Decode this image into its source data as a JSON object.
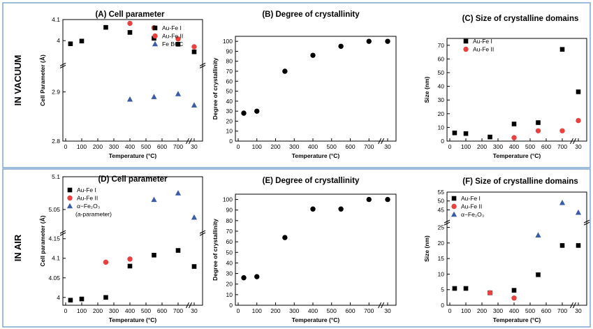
{
  "row_labels": [
    "IN VACUUM",
    "IN AIR"
  ],
  "colors": {
    "frame": "#7ea6d3",
    "au_fe_i": "#000000",
    "au_fe_ii": "#e8413f",
    "third": "#3a5ba8"
  },
  "chart_data": [
    {
      "type": "scatter",
      "title": "(A) Cell parameter",
      "xlabel": "Temperature (°C)",
      "ylabel": "Cell Parameter (Å)",
      "x_ticks": [
        "0",
        "100",
        "200",
        "300",
        "400",
        "500",
        "600",
        "700",
        "30"
      ],
      "y_ticks_upper": [
        "4",
        "4.1"
      ],
      "y_ticks_lower": [
        "2.8",
        "2.9"
      ],
      "ylim_upper": [
        3.9,
        4.1
      ],
      "ylim_lower": [
        2.8,
        2.95
      ],
      "legend": [
        "Au-Fe I",
        "Au-Fe II",
        "Fe BCC"
      ],
      "series": [
        {
          "name": "Au-Fe I",
          "marker": "square",
          "color": "#000000",
          "x": [
            30,
            100,
            250,
            400,
            550,
            700,
            800
          ],
          "y": [
            3.985,
            3.998,
            4.063,
            4.039,
            4.011,
            3.983,
            3.947
          ]
        },
        {
          "name": "Au-Fe II",
          "marker": "circle",
          "color": "#e8413f",
          "x": [
            400,
            550,
            700,
            800
          ],
          "y": [
            4.082,
            4.061,
            4.008,
            3.971
          ]
        },
        {
          "name": "Fe BCC",
          "marker": "triangle",
          "color": "#3a5ba8",
          "x": [
            400,
            550,
            700,
            800
          ],
          "y": [
            2.885,
            2.89,
            2.896,
            2.873
          ]
        }
      ]
    },
    {
      "type": "scatter",
      "title": "(B) Degree of crystallinity",
      "xlabel": "Temperature (°C)",
      "ylabel": "Degree of crystallinity",
      "x_ticks": [
        "0",
        "100",
        "200",
        "300",
        "400",
        "500",
        "600",
        "700",
        "30"
      ],
      "y_ticks": [
        "0",
        "10",
        "20",
        "30",
        "40",
        "50",
        "60",
        "70",
        "80",
        "90",
        "100"
      ],
      "ylim": [
        0,
        105
      ],
      "series": [
        {
          "marker": "circle",
          "color": "#000000",
          "x": [
            30,
            100,
            250,
            400,
            550,
            700,
            800
          ],
          "y": [
            28,
            30,
            70,
            86,
            95,
            100,
            100
          ]
        }
      ]
    },
    {
      "type": "scatter",
      "title": "(C) Size of crystalline domains",
      "xlabel": "Temperature (°C)",
      "ylabel": "Size (nm)",
      "x_ticks": [
        "0",
        "100",
        "200",
        "300",
        "400",
        "500",
        "600",
        "700",
        "30"
      ],
      "y_ticks": [
        "0",
        "10",
        "20",
        "30",
        "40",
        "50",
        "60",
        "70"
      ],
      "ylim": [
        0,
        75
      ],
      "legend": [
        "Au-Fe I",
        "Au-Fe II"
      ],
      "series": [
        {
          "name": "Au-Fe I",
          "marker": "square",
          "color": "#000000",
          "x": [
            30,
            100,
            250,
            400,
            550,
            700,
            800
          ],
          "y": [
            6,
            5.5,
            3,
            12.5,
            13.5,
            67,
            36
          ]
        },
        {
          "name": "Au-Fe II",
          "marker": "circle",
          "color": "#e8413f",
          "x": [
            400,
            550,
            700,
            800
          ],
          "y": [
            2.5,
            7.5,
            7.5,
            15
          ]
        }
      ]
    },
    {
      "type": "scatter",
      "title": "(D) Cell parameter",
      "xlabel": "Temperature (°C)",
      "ylabel": "Cell parameter (Å)",
      "x_ticks": [
        "0",
        "100",
        "200",
        "300",
        "400",
        "500",
        "600",
        "700",
        "30"
      ],
      "y_ticks_upper": [
        "5.05",
        "5.1"
      ],
      "y_ticks_lower": [
        "4",
        "4.05",
        "4.1",
        "4.15"
      ],
      "ylim_upper": [
        5.02,
        5.1
      ],
      "ylim_lower": [
        3.98,
        4.16
      ],
      "legend": [
        "Au-Fe I",
        "Au-Fe II",
        "α−Fe₂O₃",
        "(a-parameter)"
      ],
      "series": [
        {
          "name": "Au-Fe I",
          "marker": "square",
          "color": "#000000",
          "x": [
            30,
            100,
            250,
            400,
            550,
            700,
            800
          ],
          "y": [
            3.993,
            3.996,
            4.0,
            4.08,
            4.108,
            4.12,
            4.079
          ]
        },
        {
          "name": "Au-Fe II",
          "marker": "circle",
          "color": "#e8413f",
          "x": [
            250,
            400
          ],
          "y": [
            4.09,
            4.098
          ]
        },
        {
          "name": "α−Fe₂O₃",
          "marker": "triangle",
          "color": "#3a5ba8",
          "x": [
            550,
            700,
            800
          ],
          "y": [
            5.065,
            5.075,
            5.038
          ]
        }
      ]
    },
    {
      "type": "scatter",
      "title": "(E) Degree of crystallinity",
      "xlabel": "Temperature (°C)",
      "ylabel": "Degree of crystallinity",
      "x_ticks": [
        "0",
        "100",
        "200",
        "300",
        "400",
        "500",
        "600",
        "700",
        "30"
      ],
      "y_ticks": [
        "0",
        "10",
        "20",
        "30",
        "40",
        "50",
        "60",
        "70",
        "80",
        "90",
        "100"
      ],
      "ylim": [
        0,
        105
      ],
      "series": [
        {
          "marker": "circle",
          "color": "#000000",
          "x": [
            30,
            100,
            250,
            400,
            550,
            700,
            800
          ],
          "y": [
            26,
            27,
            64,
            91,
            91,
            100,
            100
          ]
        }
      ]
    },
    {
      "type": "scatter",
      "title": "(F) Size of crystalline domains",
      "xlabel": "Temperature (°C)",
      "ylabel": "Size (nm)",
      "x_ticks": [
        "0",
        "100",
        "200",
        "300",
        "400",
        "500",
        "600",
        "700",
        "30"
      ],
      "y_ticks_upper": [
        "45",
        "50",
        "55"
      ],
      "y_ticks_lower": [
        "0",
        "5",
        "10",
        "15",
        "20",
        "25"
      ],
      "ylim_upper": [
        40,
        55
      ],
      "ylim_lower": [
        0,
        26
      ],
      "legend": [
        "Au-Fe I",
        "Au-Fe II",
        "α−Fe₂O₃"
      ],
      "series": [
        {
          "name": "Au-Fe I",
          "marker": "square",
          "color": "#000000",
          "x": [
            30,
            100,
            250,
            400,
            550,
            700,
            800
          ],
          "y": [
            5.4,
            5.4,
            4,
            4.8,
            9.8,
            19.2,
            19.2
          ]
        },
        {
          "name": "Au-Fe II",
          "marker": "circle",
          "color": "#e8413f",
          "x": [
            250,
            400
          ],
          "y": [
            4,
            2.3
          ]
        },
        {
          "name": "α−Fe₂O₃",
          "marker": "triangle",
          "color": "#3a5ba8",
          "x": [
            550,
            700,
            800
          ],
          "y": [
            22.5,
            49,
            43.5
          ]
        }
      ]
    }
  ]
}
